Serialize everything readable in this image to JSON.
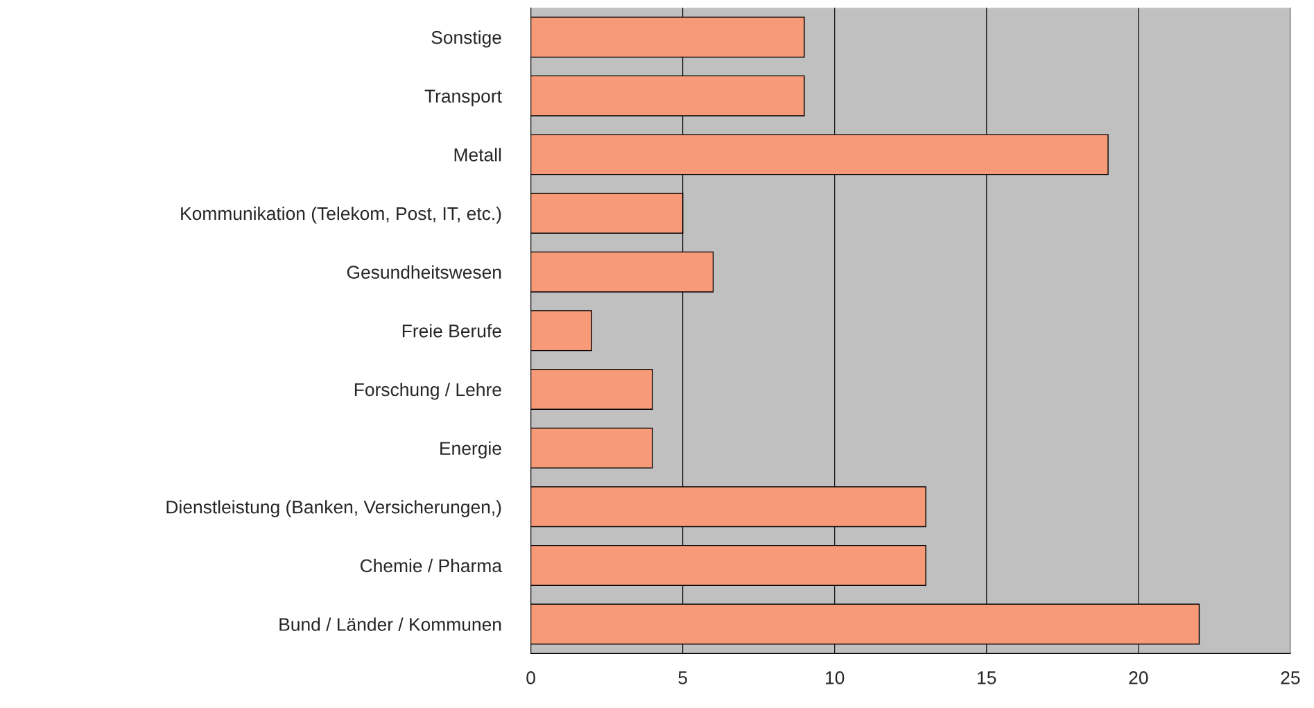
{
  "chart_data": {
    "type": "bar",
    "orientation": "horizontal",
    "categories": [
      "Sonstige",
      "Transport",
      "Metall",
      "Kommunikation (Telekom, Post, IT, etc.)",
      "Gesundheitswesen",
      "Freie Berufe",
      "Forschung / Lehre",
      "Energie",
      "Dienstleistung (Banken, Versicherungen,)",
      "Chemie / Pharma",
      "Bund / Länder / Kommunen"
    ],
    "values": [
      9,
      9,
      19,
      5,
      6,
      2,
      4,
      4,
      13,
      13,
      22
    ],
    "color": "#f79a78",
    "xlim": [
      0,
      25
    ],
    "xticks": [
      0,
      5,
      10,
      15,
      20,
      25
    ],
    "grid": "x"
  }
}
